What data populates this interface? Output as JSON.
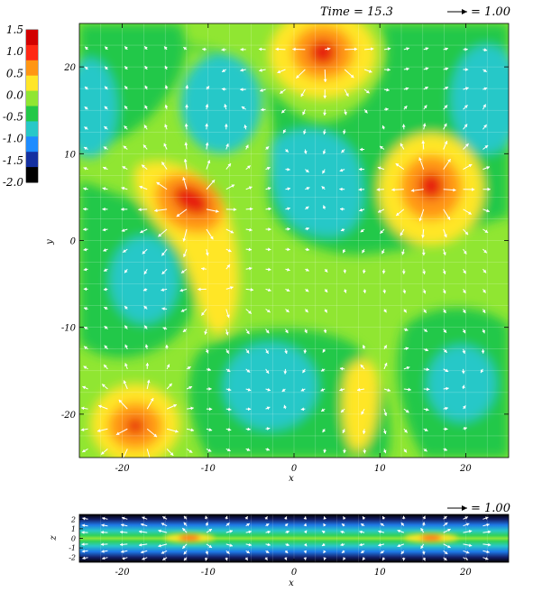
{
  "chart_data": [
    {
      "type": "heatmap",
      "panel": "top",
      "title": "",
      "annotation_time": "Time = 15.3",
      "vector_key_label": "= 1.00",
      "xlabel": "x",
      "ylabel": "y",
      "xlim": [
        -25,
        25
      ],
      "ylim": [
        -25,
        25
      ],
      "x_ticks": [
        "-20",
        "-10",
        "0",
        "10",
        "20"
      ],
      "y_ticks": [
        "20",
        "10",
        "0",
        "-10",
        "-20"
      ],
      "colorbar": {
        "ticks": [
          "1.5",
          "1.0",
          "0.5",
          "0.0",
          "-0.5",
          "-1.0",
          "-1.5",
          "-2.0"
        ],
        "range": [
          -2.0,
          1.5
        ],
        "colors": [
          "#000000",
          "#1430a0",
          "#1e8cff",
          "#28c8c8",
          "#23c848",
          "#90e632",
          "#ffe628",
          "#ff9614",
          "#ff2814",
          "#d20000"
        ]
      },
      "peaks": [
        {
          "x": 3.5,
          "y": 22,
          "value": 1.5
        },
        {
          "x": -12,
          "y": 4,
          "value": 1.5
        },
        {
          "x": 16,
          "y": 6,
          "value": 1.4
        },
        {
          "x": -18,
          "y": -21,
          "value": 1.3
        },
        {
          "x": -8.5,
          "y": -6,
          "value": 0.5
        },
        {
          "x": 10,
          "y": -17,
          "value": 0.4
        }
      ],
      "troughs": [
        {
          "x": -8,
          "y": 17,
          "value": -0.5
        },
        {
          "x": 3,
          "y": 7,
          "value": -0.5
        },
        {
          "x": -16,
          "y": -5,
          "value": -0.5
        },
        {
          "x": -2,
          "y": -17,
          "value": -0.5
        },
        {
          "x": 19,
          "y": -16,
          "value": -0.5
        },
        {
          "x": 22,
          "y": 17,
          "value": -0.5
        }
      ]
    },
    {
      "type": "heatmap",
      "panel": "bottom",
      "vector_key_label": "= 1.00",
      "xlabel": "x",
      "ylabel": "z",
      "xlim": [
        -25,
        25
      ],
      "ylim": [
        -2.5,
        2.5
      ],
      "x_ticks": [
        "-20",
        "-10",
        "0",
        "10",
        "20"
      ],
      "z_ticks": [
        "2",
        "1",
        "0",
        "-1",
        "-2"
      ],
      "sources": [
        {
          "x": -12,
          "z": 0
        },
        {
          "x": 16,
          "z": 0
        }
      ]
    }
  ]
}
